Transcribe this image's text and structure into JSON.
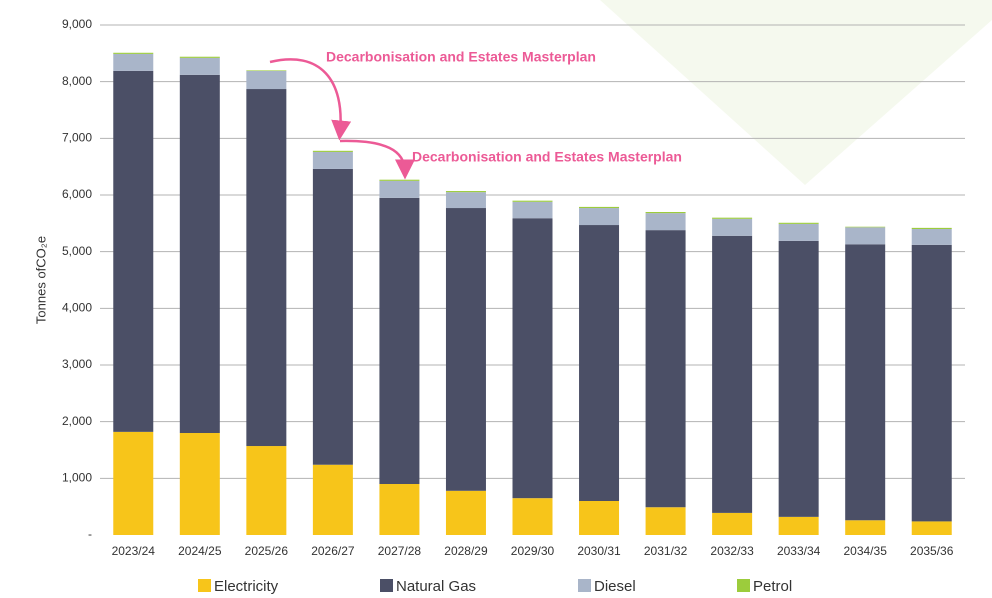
{
  "chart_data": {
    "type": "stacked_bar",
    "y_label": "Tonnes ofCO₂e",
    "annotations": [
      "Decarbonisation and Estates Masterplan",
      "Decarbonisation and Estates Masterplan"
    ],
    "categories": [
      "2023/24",
      "2024/25",
      "2025/26",
      "2026/27",
      "2027/28",
      "2028/29",
      "2029/30",
      "2030/31",
      "2031/32",
      "2032/33",
      "2033/34",
      "2034/35",
      "2035/36"
    ],
    "series": [
      {
        "name": "Electricity",
        "color": "#f7c51a",
        "values": [
          1820,
          1800,
          1570,
          1240,
          900,
          780,
          650,
          600,
          490,
          390,
          320,
          260,
          240
        ]
      },
      {
        "name": "Natural Gas",
        "color": "#4b4f66",
        "values": [
          6370,
          6320,
          6300,
          5220,
          5050,
          4990,
          4940,
          4870,
          4890,
          4890,
          4870,
          4870,
          4880
        ]
      },
      {
        "name": "Diesel",
        "color": "#a9b5c9",
        "values": [
          300,
          300,
          320,
          300,
          300,
          280,
          290,
          300,
          300,
          300,
          300,
          300,
          280
        ]
      },
      {
        "name": "Petrol",
        "color": "#9ccc3c",
        "values": [
          20,
          20,
          10,
          20,
          20,
          20,
          20,
          20,
          20,
          20,
          20,
          10,
          20
        ]
      }
    ],
    "ylim": [
      0,
      9000
    ],
    "yticks": [
      {
        "value": 0,
        "label": "-"
      },
      {
        "value": 1000,
        "label": "1,000"
      },
      {
        "value": 2000,
        "label": "2,000"
      },
      {
        "value": 3000,
        "label": "3,000"
      },
      {
        "value": 4000,
        "label": "4,000"
      },
      {
        "value": 5000,
        "label": "5,000"
      },
      {
        "value": 6000,
        "label": "6,000"
      },
      {
        "value": 7000,
        "label": "7,000"
      },
      {
        "value": 8000,
        "label": "8,000"
      },
      {
        "value": 9000,
        "label": "9,000"
      }
    ],
    "grid": true
  }
}
